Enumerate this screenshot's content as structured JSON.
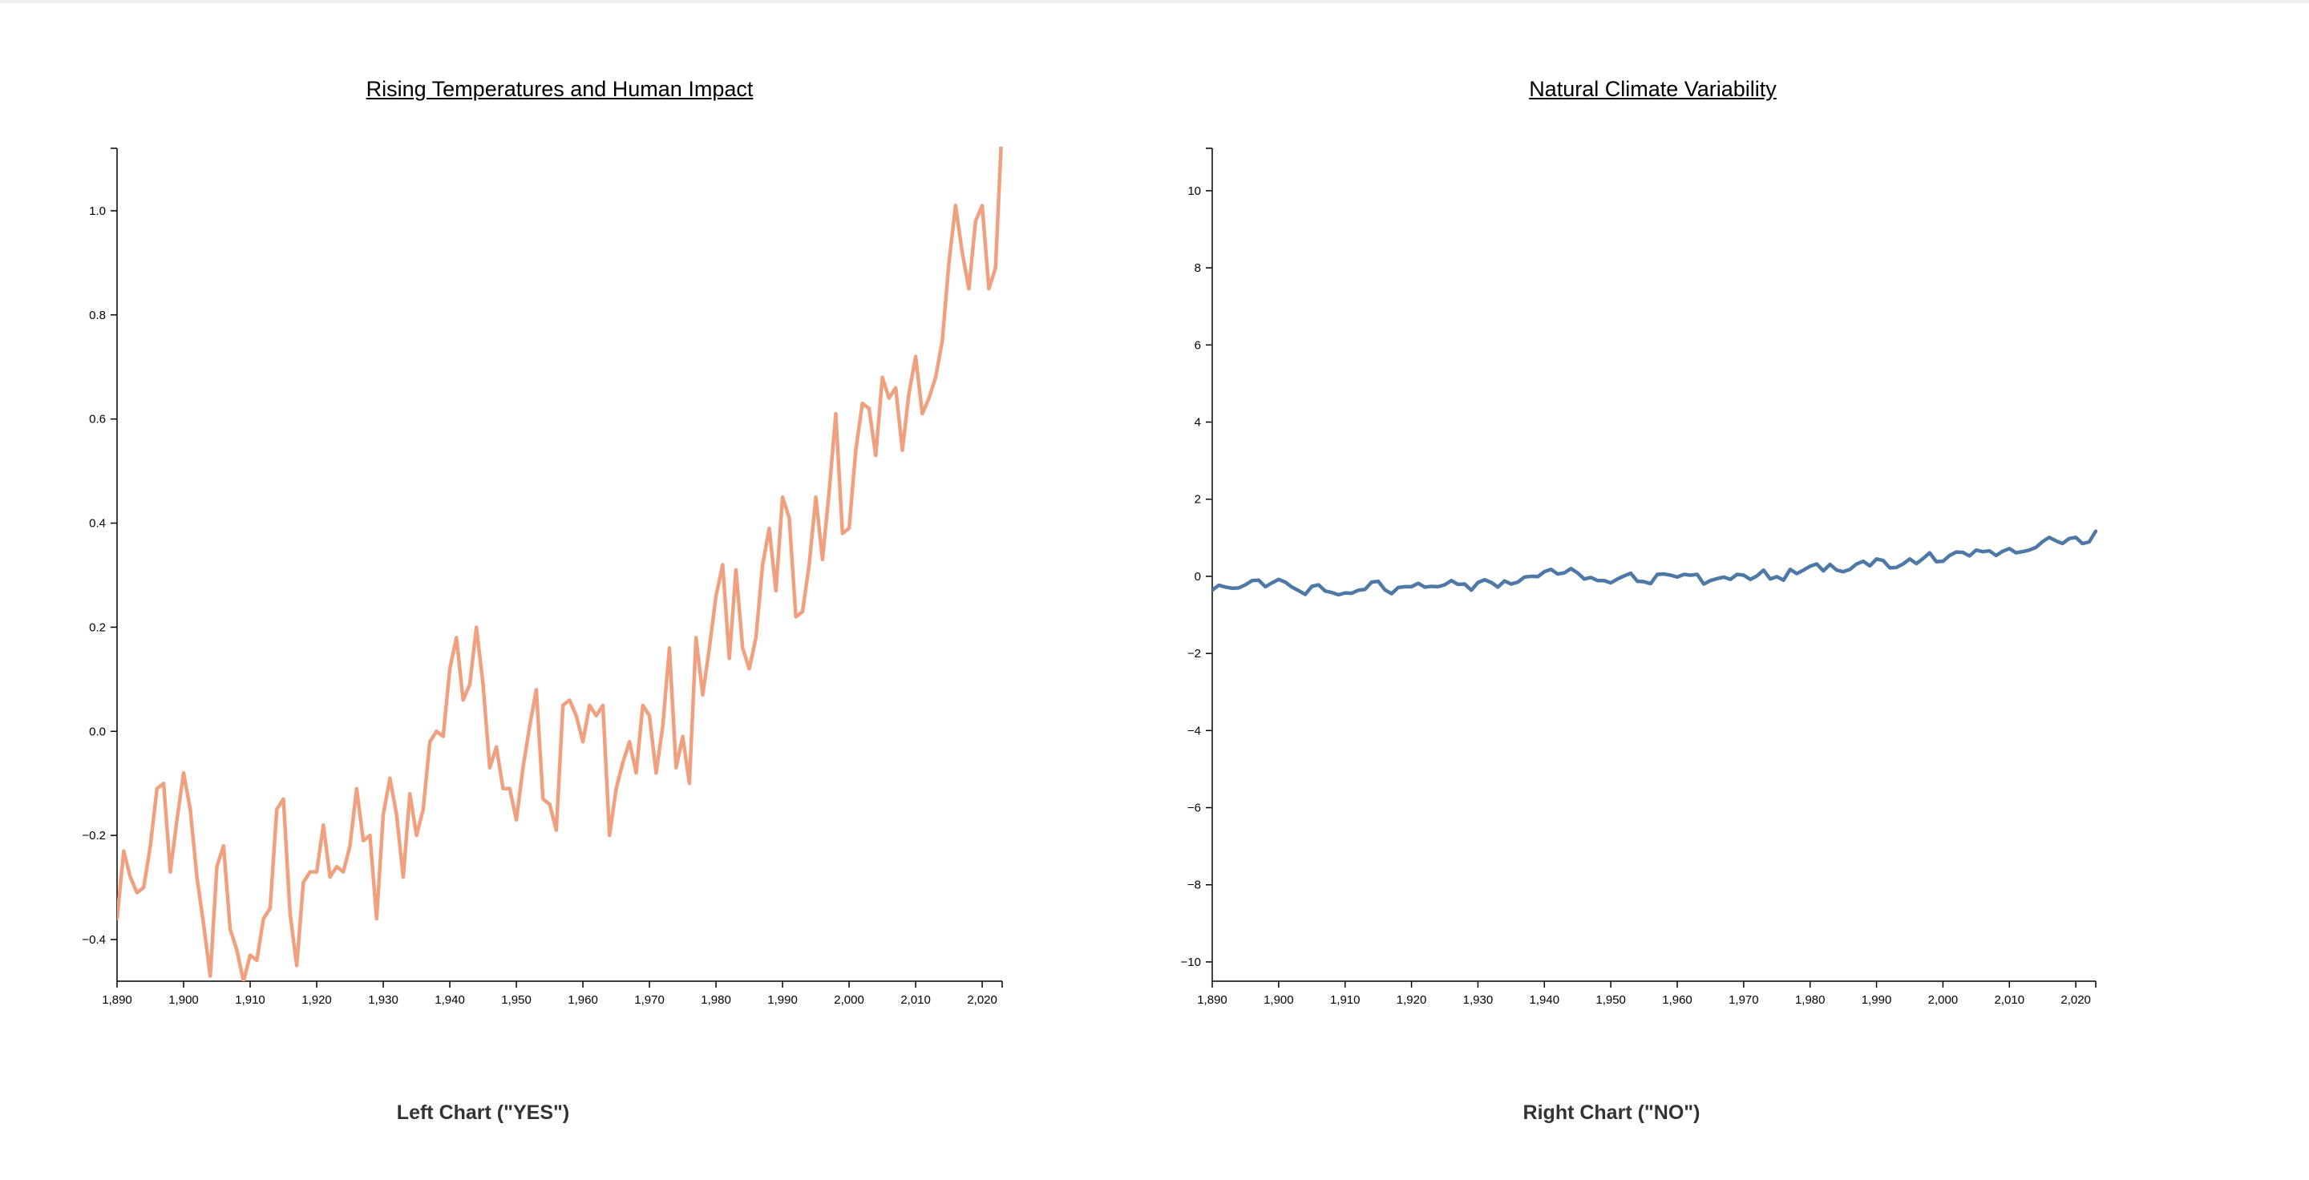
{
  "page": {
    "left_caption": "Left Chart (\"YES\")",
    "right_caption": "Right Chart (\"NO\")"
  },
  "chart_data": [
    {
      "type": "line",
      "title": "Rising Temperatures and Human Impact",
      "xlabel": "",
      "ylabel": "",
      "xlim": [
        1890,
        2023
      ],
      "ylim": [
        -0.48,
        1.12
      ],
      "x_ticks": [
        1890,
        1900,
        1910,
        1920,
        1930,
        1940,
        1950,
        1960,
        1970,
        1980,
        1990,
        2000,
        2010,
        2020
      ],
      "x_tick_labels": [
        "1,890",
        "1,900",
        "1,910",
        "1,920",
        "1,930",
        "1,940",
        "1,950",
        "1,960",
        "1,970",
        "1,980",
        "1,990",
        "2,000",
        "2,010",
        "2,020"
      ],
      "y_ticks": [
        -0.4,
        -0.2,
        0.0,
        0.2,
        0.4,
        0.6,
        0.8,
        1.0
      ],
      "y_tick_labels": [
        "−0.4",
        "−0.2",
        "0.0",
        "0.2",
        "0.4",
        "0.6",
        "0.8",
        "1.0"
      ],
      "grid": false,
      "color": "#F0A07F",
      "series": [
        {
          "x_start": 1890,
          "values": [
            -0.36,
            -0.23,
            -0.28,
            -0.31,
            -0.3,
            -0.22,
            -0.11,
            -0.1,
            -0.27,
            -0.17,
            -0.08,
            -0.15,
            -0.28,
            -0.37,
            -0.47,
            -0.26,
            -0.22,
            -0.38,
            -0.42,
            -0.48,
            -0.43,
            -0.44,
            -0.36,
            -0.34,
            -0.15,
            -0.13,
            -0.35,
            -0.45,
            -0.29,
            -0.27,
            -0.27,
            -0.18,
            -0.28,
            -0.26,
            -0.27,
            -0.22,
            -0.11,
            -0.21,
            -0.2,
            -0.36,
            -0.16,
            -0.09,
            -0.16,
            -0.28,
            -0.12,
            -0.2,
            -0.15,
            -0.02,
            0.0,
            -0.01,
            0.12,
            0.18,
            0.06,
            0.09,
            0.2,
            0.09,
            -0.07,
            -0.03,
            -0.11,
            -0.11,
            -0.17,
            -0.07,
            0.01,
            0.08,
            -0.13,
            -0.14,
            -0.19,
            0.05,
            0.06,
            0.03,
            -0.02,
            0.05,
            0.03,
            0.05,
            -0.2,
            -0.11,
            -0.06,
            -0.02,
            -0.08,
            0.05,
            0.03,
            -0.08,
            0.01,
            0.16,
            -0.07,
            -0.01,
            -0.1,
            0.18,
            0.07,
            0.16,
            0.26,
            0.32,
            0.14,
            0.31,
            0.16,
            0.12,
            0.18,
            0.32,
            0.39,
            0.27,
            0.45,
            0.41,
            0.22,
            0.23,
            0.32,
            0.45,
            0.33,
            0.46,
            0.61,
            0.38,
            0.39,
            0.54,
            0.63,
            0.62,
            0.53,
            0.68,
            0.64,
            0.66,
            0.54,
            0.65,
            0.72,
            0.61,
            0.64,
            0.68,
            0.75,
            0.9,
            1.01,
            0.92,
            0.85,
            0.98,
            1.01,
            0.85,
            0.89,
            1.17
          ]
        }
      ]
    },
    {
      "type": "line",
      "title": "Natural Climate Variability",
      "xlabel": "",
      "ylabel": "",
      "xlim": [
        1890,
        2023
      ],
      "ylim": [
        -10.5,
        11.1
      ],
      "x_ticks": [
        1890,
        1900,
        1910,
        1920,
        1930,
        1940,
        1950,
        1960,
        1970,
        1980,
        1990,
        2000,
        2010,
        2020
      ],
      "x_tick_labels": [
        "1,890",
        "1,900",
        "1,910",
        "1,920",
        "1,930",
        "1,940",
        "1,950",
        "1,960",
        "1,970",
        "1,980",
        "1,990",
        "2,000",
        "2,010",
        "2,020"
      ],
      "y_ticks": [
        -10,
        -8,
        -6,
        -4,
        -2,
        0,
        2,
        4,
        6,
        8,
        10
      ],
      "y_tick_labels": [
        "−10",
        "−8",
        "−6",
        "−4",
        "−2",
        "0",
        "2",
        "4",
        "6",
        "8",
        "10"
      ],
      "grid": false,
      "color": "#4E79A7",
      "series": [
        {
          "x_start": 1890,
          "values": [
            -0.36,
            -0.23,
            -0.28,
            -0.31,
            -0.3,
            -0.22,
            -0.11,
            -0.1,
            -0.27,
            -0.17,
            -0.08,
            -0.15,
            -0.28,
            -0.37,
            -0.47,
            -0.26,
            -0.22,
            -0.38,
            -0.42,
            -0.48,
            -0.43,
            -0.44,
            -0.36,
            -0.34,
            -0.15,
            -0.13,
            -0.35,
            -0.45,
            -0.29,
            -0.27,
            -0.27,
            -0.18,
            -0.28,
            -0.26,
            -0.27,
            -0.22,
            -0.11,
            -0.21,
            -0.2,
            -0.36,
            -0.16,
            -0.09,
            -0.16,
            -0.28,
            -0.12,
            -0.2,
            -0.15,
            -0.02,
            0.0,
            -0.01,
            0.12,
            0.18,
            0.06,
            0.09,
            0.2,
            0.09,
            -0.07,
            -0.03,
            -0.11,
            -0.11,
            -0.17,
            -0.07,
            0.01,
            0.08,
            -0.13,
            -0.14,
            -0.19,
            0.05,
            0.06,
            0.03,
            -0.02,
            0.05,
            0.03,
            0.05,
            -0.2,
            -0.11,
            -0.06,
            -0.02,
            -0.08,
            0.05,
            0.03,
            -0.08,
            0.01,
            0.16,
            -0.07,
            -0.01,
            -0.1,
            0.18,
            0.07,
            0.16,
            0.26,
            0.32,
            0.14,
            0.31,
            0.16,
            0.12,
            0.18,
            0.32,
            0.39,
            0.27,
            0.45,
            0.41,
            0.22,
            0.23,
            0.32,
            0.45,
            0.33,
            0.46,
            0.61,
            0.38,
            0.39,
            0.54,
            0.63,
            0.62,
            0.53,
            0.68,
            0.64,
            0.66,
            0.54,
            0.65,
            0.72,
            0.61,
            0.64,
            0.68,
            0.75,
            0.9,
            1.01,
            0.92,
            0.85,
            0.98,
            1.01,
            0.85,
            0.89,
            1.17
          ]
        }
      ]
    }
  ]
}
